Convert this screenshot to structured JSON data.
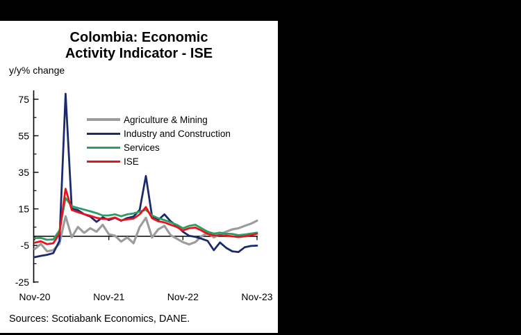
{
  "window": {
    "background": "#000000",
    "panel_background": "#ffffff",
    "text_color": "#000000"
  },
  "title": {
    "line1": "Colombia: Economic",
    "line2": "Activity Indicator - ISE"
  },
  "subtitle": "y/y% change",
  "source_note": "Sources: Scotiabank Economics, DANE.",
  "chart_data": {
    "type": "line",
    "title": "Colombia: Economic Activity Indicator - ISE",
    "ylabel": "y/y% change",
    "xlabel": "",
    "ylim": [
      -25,
      80
    ],
    "grid": false,
    "legend_position": "upper-left-inside",
    "zero_baseline": true,
    "y_ticks_major": [
      75,
      55,
      35,
      15,
      -5,
      -25
    ],
    "y_ticks_minor": [
      65,
      45,
      25,
      5,
      -15
    ],
    "x_tick_labels": [
      "Nov-20",
      "Nov-21",
      "Nov-22",
      "Nov-23"
    ],
    "x_tick_indices": [
      0,
      12,
      24,
      36
    ],
    "categories": [
      "Nov-20",
      "Dec-20",
      "Jan-21",
      "Feb-21",
      "Mar-21",
      "Apr-21",
      "May-21",
      "Jun-21",
      "Jul-21",
      "Aug-21",
      "Sep-21",
      "Oct-21",
      "Nov-21",
      "Dec-21",
      "Jan-22",
      "Feb-22",
      "Mar-22",
      "Apr-22",
      "May-22",
      "Jun-22",
      "Jul-22",
      "Aug-22",
      "Sep-22",
      "Oct-22",
      "Nov-22",
      "Dec-22",
      "Jan-23",
      "Feb-23",
      "Mar-23",
      "Apr-23",
      "May-23",
      "Jun-23",
      "Jul-23",
      "Aug-23",
      "Sep-23",
      "Oct-23",
      "Nov-23"
    ],
    "series": [
      {
        "name": "Agriculture & Mining",
        "color": "#9C9C9C",
        "values": [
          -7.0,
          -4.2,
          -8.2,
          -7.6,
          -4.0,
          11.0,
          -0.5,
          5.1,
          1.9,
          4.4,
          2.5,
          6.3,
          1.1,
          0.3,
          -2.9,
          -0.6,
          -3.8,
          5.1,
          10.1,
          -0.6,
          3.8,
          5.7,
          0.6,
          -1.3,
          -3.2,
          -4.4,
          -3.2,
          0.0,
          1.9,
          -0.6,
          1.1,
          2.5,
          3.8,
          4.4,
          5.7,
          6.9,
          8.5
        ]
      },
      {
        "name": "Industry and Construction",
        "color": "#1B2A6B",
        "values": [
          -11.4,
          -10.7,
          -10.1,
          -9.2,
          -2.5,
          78.0,
          15.2,
          14.3,
          12.1,
          10.8,
          7.9,
          10.4,
          8.9,
          10.1,
          8.5,
          10.0,
          10.8,
          14.5,
          33.0,
          10.8,
          8.9,
          12.0,
          8.2,
          5.7,
          2.5,
          0.3,
          -0.3,
          -1.3,
          -2.5,
          -7.6,
          -3.4,
          -6.3,
          -8.2,
          -8.6,
          -6.0,
          -5.3,
          -5.1
        ]
      },
      {
        "name": "Services",
        "color": "#2A9D64",
        "values": [
          -1.0,
          -0.9,
          -1.9,
          -1.7,
          3.2,
          21.0,
          16.5,
          15.5,
          14.6,
          13.7,
          12.7,
          11.4,
          11.4,
          12.0,
          11.0,
          12.0,
          12.5,
          13.5,
          14.5,
          11.4,
          9.9,
          8.9,
          7.6,
          6.3,
          4.4,
          5.7,
          6.3,
          4.4,
          2.5,
          1.5,
          2.0,
          1.5,
          1.3,
          0.6,
          1.0,
          1.5,
          2.0
        ]
      },
      {
        "name": "ISE",
        "color": "#EC111A",
        "values": [
          -3.5,
          -2.7,
          -4.3,
          -3.8,
          1.5,
          26.0,
          14.4,
          13.2,
          12.1,
          11.2,
          10.1,
          9.5,
          9.5,
          10.3,
          8.7,
          9.3,
          9.7,
          12.0,
          16.0,
          9.9,
          8.2,
          7.6,
          6.3,
          5.1,
          3.2,
          4.4,
          4.8,
          3.2,
          1.3,
          0.4,
          0.6,
          0.4,
          0.0,
          -0.4,
          0.0,
          0.6,
          1.4
        ]
      }
    ]
  }
}
